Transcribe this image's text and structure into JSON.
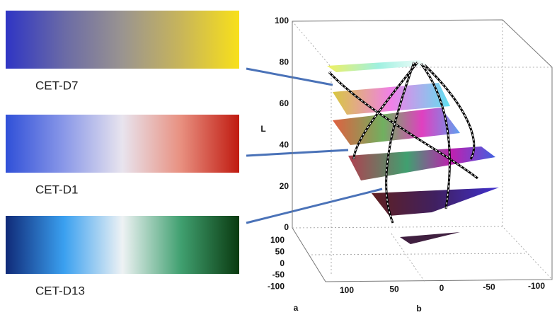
{
  "colormaps": [
    {
      "name": "CET-D7",
      "colors": [
        "#2f35c4",
        "#6a6aa6",
        "#9a9490",
        "#c8b55a",
        "#f8e01a"
      ]
    },
    {
      "name": "CET-D1",
      "colors": [
        "#3050d8",
        "#8a98e8",
        "#e8e4ee",
        "#e89080",
        "#c01a10"
      ]
    },
    {
      "name": "CET-D13",
      "colors": [
        "#102a78",
        "#3aa0f0",
        "#eef2f4",
        "#40a070",
        "#0a3a10"
      ]
    }
  ],
  "plot": {
    "z_label": "L",
    "z_ticks": [
      0,
      20,
      40,
      60,
      80,
      100
    ],
    "a_label": "a",
    "a_ticks": [
      100,
      50,
      0,
      -50,
      -100
    ],
    "b_label": "b",
    "b_ticks": [
      100,
      50,
      0,
      -50,
      -100
    ]
  }
}
